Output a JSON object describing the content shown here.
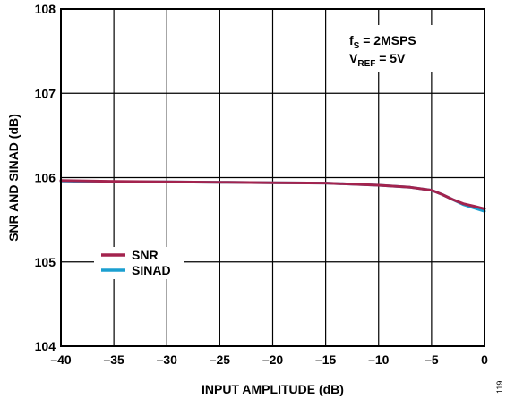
{
  "chart_data": {
    "type": "line",
    "xlabel": "INPUT AMPLITUDE (dB)",
    "ylabel": "SNR AND SINAD (dB)",
    "xlim": [
      -40,
      0
    ],
    "ylim": [
      104,
      108
    ],
    "xticks": [
      -40,
      -35,
      -30,
      -25,
      -20,
      -15,
      -10,
      -5,
      0
    ],
    "xtick_labels": [
      "–40",
      "–35",
      "–30",
      "–25",
      "–20",
      "–15",
      "–10",
      "–5",
      "0"
    ],
    "yticks": [
      104,
      105,
      106,
      107,
      108
    ],
    "ytick_labels": [
      "104",
      "105",
      "106",
      "107",
      "108"
    ],
    "grid": true,
    "legend_position": "bottom-left",
    "annotations": [
      {
        "main": "f",
        "sub": "S",
        "rest": " = 2MSPS"
      },
      {
        "main": "V",
        "sub": "REF",
        "rest": " = 5V"
      }
    ],
    "figure_id": "119",
    "series": [
      {
        "name": "SINAD",
        "color": "#1b9fd0",
        "x": [
          -40,
          -35,
          -30,
          -25,
          -20,
          -15,
          -10,
          -7,
          -5,
          -4,
          -3,
          -2,
          -1,
          0
        ],
        "y": [
          105.96,
          105.95,
          105.95,
          105.945,
          105.94,
          105.935,
          105.91,
          105.885,
          105.85,
          105.8,
          105.74,
          105.68,
          105.64,
          105.6
        ]
      },
      {
        "name": "SNR",
        "color": "#a3234e",
        "x": [
          -40,
          -35,
          -30,
          -25,
          -20,
          -15,
          -10,
          -7,
          -5,
          -4,
          -3,
          -2,
          -1,
          0
        ],
        "y": [
          105.965,
          105.955,
          105.95,
          105.945,
          105.94,
          105.935,
          105.91,
          105.885,
          105.85,
          105.8,
          105.74,
          105.69,
          105.66,
          105.63
        ]
      }
    ]
  }
}
